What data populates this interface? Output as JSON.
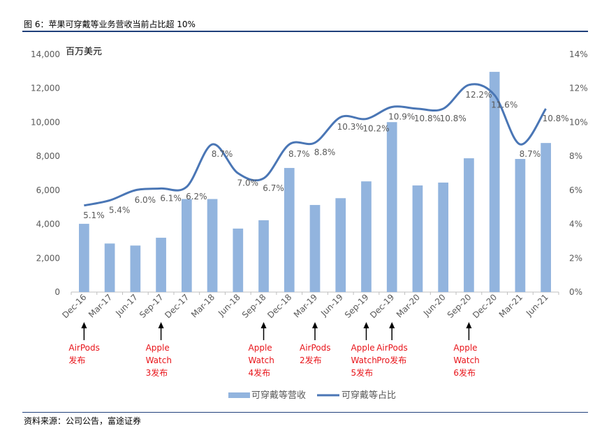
{
  "figure_title": "图 6：苹果可穿戴等业务营收当前占比超 10%",
  "source": "资料来源：公司公告，富途证券",
  "chart_data": {
    "type": "bar+line",
    "unit_label": "百万美元",
    "categories": [
      "Dec-16",
      "Mar-17",
      "Jun-17",
      "Sep-17",
      "Dec-17",
      "Mar-18",
      "Jun-18",
      "Sep-18",
      "Dec-18",
      "Mar-19",
      "Jun-19",
      "Sep-19",
      "Dec-19",
      "Mar-20",
      "Jun-20",
      "Sep-20",
      "Dec-20",
      "Mar-21",
      "Jun-21"
    ],
    "series": [
      {
        "name": "可穿戴等营收",
        "type": "bar",
        "axis": "left",
        "values": [
          4020,
          2860,
          2740,
          3200,
          5480,
          5480,
          3740,
          4230,
          7310,
          5130,
          5530,
          6520,
          10010,
          6280,
          6450,
          7880,
          12970,
          7840,
          8780
        ]
      },
      {
        "name": "可穿戴等占比",
        "type": "line",
        "axis": "right",
        "values": [
          5.1,
          5.4,
          6.0,
          6.1,
          6.2,
          8.7,
          7.0,
          6.7,
          8.7,
          8.8,
          10.3,
          10.2,
          10.9,
          10.8,
          10.8,
          12.2,
          11.6,
          8.7,
          10.8
        ],
        "labels": [
          "5.1%",
          "5.4%",
          "6.0%",
          "6.1%",
          "6.2%",
          "8.7%",
          "7.0%",
          "6.7%",
          "8.7%",
          "8.8%",
          "10.3%",
          "10.2%",
          "10.9%",
          "10.8%",
          "10.8%",
          "12.2%",
          "11.6%",
          "8.7%",
          "10.8%"
        ]
      }
    ],
    "y_left": {
      "min": 0,
      "max": 14000,
      "step": 2000,
      "tick_labels": [
        "0",
        "2,000",
        "4,000",
        "6,000",
        "8,000",
        "10,000",
        "12,000",
        "14,000"
      ]
    },
    "y_right": {
      "min": 0,
      "max": 14,
      "step": 2,
      "tick_labels": [
        "0%",
        "2%",
        "4%",
        "6%",
        "8%",
        "10%",
        "12%",
        "14%"
      ]
    },
    "legend": {
      "position": "bottom",
      "items": [
        "可穿戴等营收",
        "可穿戴等占比"
      ]
    },
    "colors": {
      "bar": "#92b4de",
      "line": "#4a76b5",
      "annotation": "#e8141a",
      "axis_text": "#595959"
    },
    "annotations": [
      {
        "category": "Dec-16",
        "lines": [
          "AirPods",
          "发布"
        ]
      },
      {
        "category": "Sep-17",
        "lines": [
          "Apple",
          "Watch",
          "3发布"
        ]
      },
      {
        "category": "Sep-18",
        "lines": [
          "Apple",
          "Watch",
          "4发布"
        ]
      },
      {
        "category": "Mar-19",
        "lines": [
          "AirPods",
          "2发布"
        ]
      },
      {
        "category": "Sep-19",
        "lines": [
          "Apple",
          "Watch",
          "5发布"
        ]
      },
      {
        "category": "Dec-19",
        "lines": [
          "AirPods",
          "Pro发布"
        ]
      },
      {
        "category": "Sep-20",
        "lines": [
          "Apple",
          "Watch",
          "6发布"
        ]
      }
    ]
  }
}
